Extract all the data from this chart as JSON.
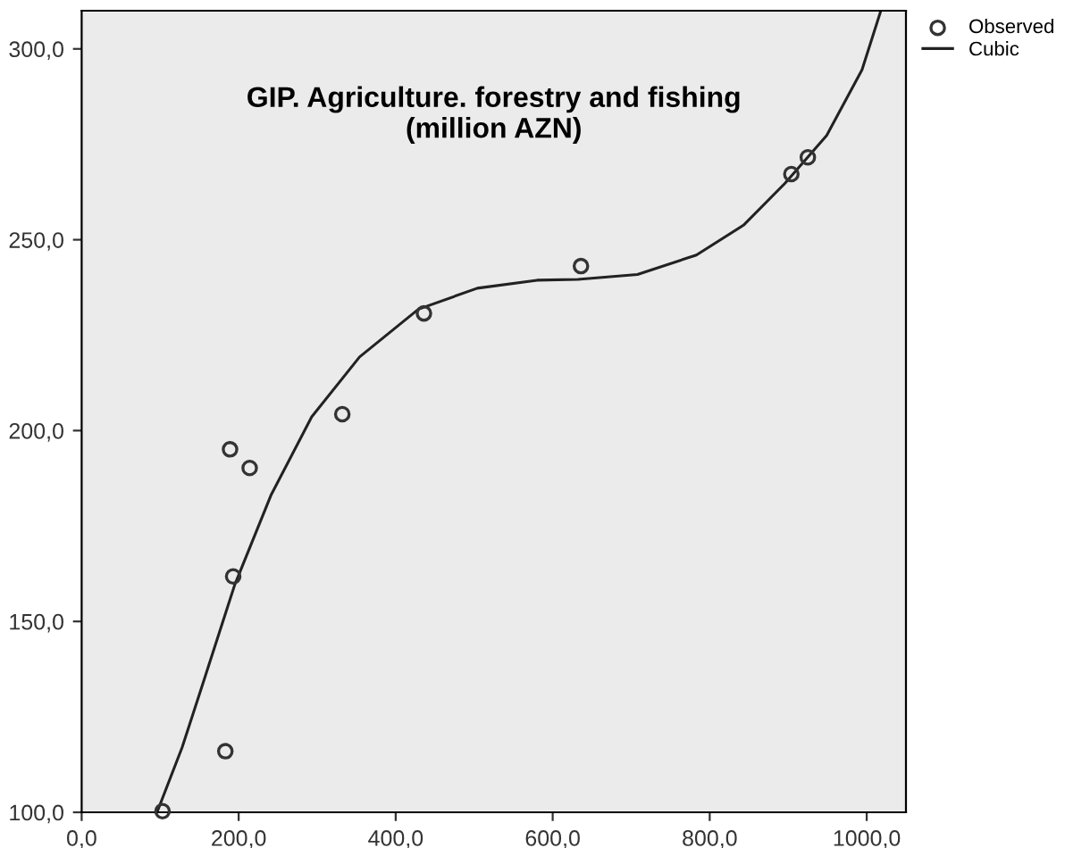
{
  "chart_data": {
    "type": "scatter",
    "title": "GIP. Agriculture. forestry and fishing\n(million AZN)",
    "xlim": [
      0,
      1050
    ],
    "ylim": [
      100,
      310
    ],
    "xticks": [
      {
        "value": 0,
        "label": "0,0"
      },
      {
        "value": 200,
        "label": "200,0"
      },
      {
        "value": 400,
        "label": "400,0"
      },
      {
        "value": 600,
        "label": "600,0"
      },
      {
        "value": 800,
        "label": "800,0"
      },
      {
        "value": 1000,
        "label": "1000,0"
      }
    ],
    "yticks": [
      {
        "value": 100,
        "label": "100,0"
      },
      {
        "value": 150,
        "label": "150,0"
      },
      {
        "value": 200,
        "label": "200,0"
      },
      {
        "value": 250,
        "label": "250,0"
      },
      {
        "value": 300,
        "label": "300,0"
      }
    ],
    "grid": false,
    "legend": "top right",
    "series": [
      {
        "name": "Observed",
        "marker": "circle",
        "color": "#333333",
        "x": [
          103,
          183,
          189,
          193,
          214,
          332,
          436,
          636,
          904,
          925
        ],
        "values": [
          100.3,
          116,
          195.1,
          161.8,
          190.2,
          204.3,
          230.7,
          243.1,
          267.2,
          271.6
        ]
      },
      {
        "name": "Cubic",
        "type": "line",
        "marker": "none",
        "line_style": "solid",
        "color": "#222222",
        "x": [
          96,
          128,
          158,
          195,
          241,
          293,
          354,
          429,
          504,
          580,
          632,
          708,
          783,
          843,
          896,
          949,
          994,
          1018
        ],
        "values": [
          100,
          117,
          136,
          159.6,
          183,
          203.6,
          219.3,
          231.8,
          237.3,
          239.4,
          239.6,
          240.9,
          246,
          253.8,
          264.8,
          277.3,
          294.5,
          310
        ]
      }
    ]
  }
}
